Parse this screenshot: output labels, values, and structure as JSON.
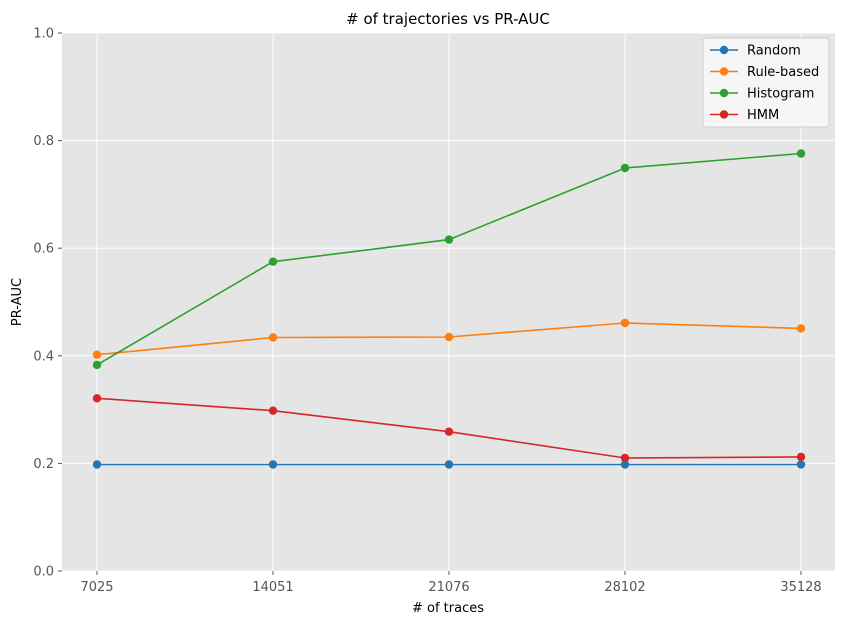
{
  "chart_data": {
    "type": "line",
    "title": "# of trajectories vs PR-AUC",
    "xlabel": "# of traces",
    "ylabel": "PR-AUC",
    "x": [
      7025,
      14051,
      21076,
      28102,
      35128
    ],
    "x_tick_labels": [
      "7025",
      "14051",
      "21076",
      "28102",
      "35128"
    ],
    "ylim": [
      0.0,
      1.0
    ],
    "y_ticks": [
      0.0,
      0.2,
      0.4,
      0.6,
      0.8,
      1.0
    ],
    "y_tick_labels": [
      "0.0",
      "0.2",
      "0.4",
      "0.6",
      "0.8",
      "1.0"
    ],
    "grid": true,
    "legend_position": "top-right",
    "series": [
      {
        "name": "Random",
        "color": "#1f77b4",
        "values": [
          0.198,
          0.198,
          0.198,
          0.198,
          0.198
        ]
      },
      {
        "name": "Rule-based",
        "color": "#ff7f0e",
        "values": [
          0.402,
          0.434,
          0.435,
          0.461,
          0.451
        ]
      },
      {
        "name": "Histogram",
        "color": "#2ca02c",
        "values": [
          0.383,
          0.575,
          0.616,
          0.749,
          0.776
        ]
      },
      {
        "name": "HMM",
        "color": "#d62728",
        "values": [
          0.321,
          0.298,
          0.259,
          0.21,
          0.212
        ]
      }
    ]
  }
}
